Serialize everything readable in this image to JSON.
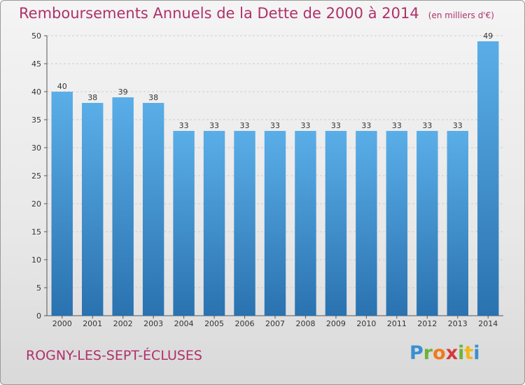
{
  "chart_data": {
    "type": "bar",
    "title": "Remboursements Annuels de la Dette de 2000 à 2014",
    "subtitle": "(en milliers d'€)",
    "categories": [
      "2000",
      "2001",
      "2002",
      "2003",
      "2004",
      "2005",
      "2006",
      "2007",
      "2008",
      "2009",
      "2010",
      "2011",
      "2012",
      "2013",
      "2014"
    ],
    "values": [
      40,
      38,
      39,
      38,
      33,
      33,
      33,
      33,
      33,
      33,
      33,
      33,
      33,
      33,
      49
    ],
    "data_labels": [
      "40",
      "38",
      "39",
      "38",
      "33",
      "33",
      "33",
      "33",
      "33",
      "33",
      "33",
      "33",
      "33",
      "33",
      "49"
    ],
    "ylim": [
      0,
      50
    ],
    "yticks": [
      0,
      5,
      10,
      15,
      20,
      25,
      30,
      35,
      40,
      45,
      50
    ],
    "xlabel": "",
    "ylabel": "",
    "grid": true,
    "colors": {
      "bar_top": "#5aaee8",
      "bar_bottom": "#2a72b0",
      "grid": "#cccccc",
      "axis": "#555555"
    }
  },
  "commune": "ROGNY-LES-SEPT-ÉCLUSES",
  "brand": {
    "letters": [
      "P",
      "r",
      "o",
      "x",
      "i",
      "t",
      "i"
    ],
    "colors": [
      "#3a8fd0",
      "#6bb23a",
      "#f07a1a",
      "#d63a3a",
      "#6bb23a",
      "#f0b71a",
      "#3a8fd0"
    ]
  }
}
